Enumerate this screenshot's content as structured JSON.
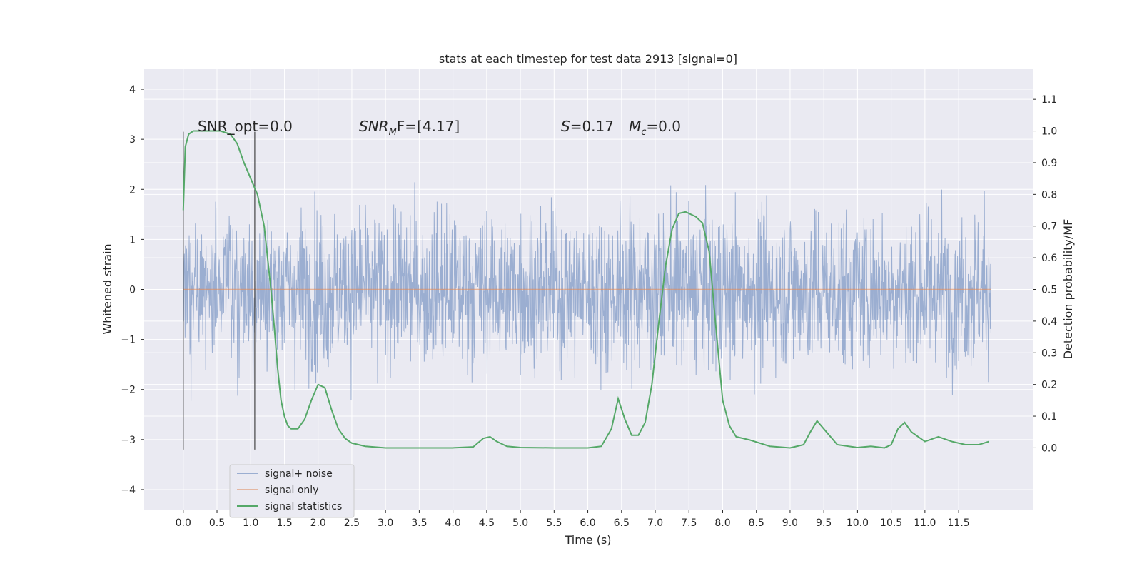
{
  "chart_data": {
    "type": "line",
    "title": "stats at each timestep for test data 2913 [signal=0]",
    "xlabel": "Time (s)",
    "ylabel_left": "Whitened strain",
    "ylabel_right": "Detection probability/MF",
    "xlim": [
      -0.58,
      12.6
    ],
    "ylim_left": [
      -4.4,
      4.4
    ],
    "ylim_right": [
      -0.195,
      1.195
    ],
    "x_ticks": [
      "0.0",
      "0.5",
      "1.0",
      "1.5",
      "2.0",
      "2.5",
      "3.0",
      "3.5",
      "4.0",
      "4.5",
      "5.0",
      "5.5",
      "6.0",
      "6.5",
      "7.0",
      "7.5",
      "8.0",
      "8.5",
      "9.0",
      "9.5",
      "10.0",
      "10.5",
      "11.0",
      "11.5"
    ],
    "y_ticks_left": [
      "−4",
      "−3",
      "−2",
      "−1",
      "0",
      "1",
      "2",
      "3",
      "4"
    ],
    "y_ticks_right": [
      "0.0",
      "0.1",
      "0.2",
      "0.3",
      "0.4",
      "0.5",
      "0.6",
      "0.7",
      "0.8",
      "0.9",
      "1.0",
      "1.1"
    ],
    "grid": true,
    "legend_position": "lower-left",
    "annotations": {
      "snr_opt": "SNR_opt=0.0",
      "snr_mf_prefix": "SNR",
      "snr_mf_sub": "M",
      "snr_mf_suffix": "F=[4.17]",
      "s_var": "S",
      "s_val": "=0.17",
      "mc_var": "M",
      "mc_sub": "c",
      "mc_val": "=0.0"
    },
    "vertical_lines_x": [
      0.0,
      1.06
    ],
    "series": [
      {
        "name": "signal+ noise",
        "color": "#4c72b0",
        "description_range": [
          -4.0,
          4.0
        ],
        "x_start": 0.0,
        "x_end": 11.98
      },
      {
        "name": "signal only",
        "color": "#dd8452",
        "x": [
          0.0,
          11.98
        ],
        "y": [
          0.0,
          0.0
        ]
      },
      {
        "name": "signal statistics",
        "color": "#55a868",
        "axis": "right",
        "x": [
          0.0,
          0.03,
          0.08,
          0.15,
          0.25,
          0.4,
          0.55,
          0.7,
          0.8,
          0.9,
          1.0,
          1.1,
          1.2,
          1.3,
          1.35,
          1.4,
          1.45,
          1.5,
          1.55,
          1.6,
          1.7,
          1.8,
          1.9,
          2.0,
          2.1,
          2.2,
          2.3,
          2.4,
          2.5,
          2.7,
          3.0,
          3.5,
          4.0,
          4.3,
          4.45,
          4.55,
          4.65,
          4.8,
          5.0,
          5.5,
          6.0,
          6.2,
          6.35,
          6.45,
          6.55,
          6.65,
          6.75,
          6.85,
          6.95,
          7.05,
          7.15,
          7.25,
          7.35,
          7.45,
          7.6,
          7.7,
          7.8,
          7.9,
          8.0,
          8.1,
          8.2,
          8.4,
          8.7,
          9.0,
          9.2,
          9.3,
          9.4,
          9.5,
          9.7,
          10.0,
          10.2,
          10.4,
          10.5,
          10.6,
          10.7,
          10.8,
          11.0,
          11.2,
          11.4,
          11.6,
          11.8,
          11.95
        ],
        "y": [
          0.75,
          0.95,
          0.99,
          1.0,
          1.0,
          1.0,
          1.0,
          0.99,
          0.96,
          0.9,
          0.85,
          0.8,
          0.7,
          0.5,
          0.38,
          0.25,
          0.15,
          0.1,
          0.07,
          0.06,
          0.06,
          0.09,
          0.15,
          0.2,
          0.19,
          0.12,
          0.06,
          0.03,
          0.015,
          0.005,
          0.0,
          0.0,
          0.0,
          0.003,
          0.03,
          0.035,
          0.02,
          0.005,
          0.001,
          0.0,
          0.0,
          0.005,
          0.06,
          0.155,
          0.09,
          0.04,
          0.04,
          0.08,
          0.2,
          0.39,
          0.57,
          0.69,
          0.74,
          0.745,
          0.73,
          0.71,
          0.62,
          0.38,
          0.15,
          0.07,
          0.035,
          0.025,
          0.005,
          0.0,
          0.01,
          0.05,
          0.085,
          0.06,
          0.01,
          0.001,
          0.005,
          0.0,
          0.01,
          0.06,
          0.08,
          0.05,
          0.02,
          0.035,
          0.02,
          0.01,
          0.01,
          0.02
        ]
      }
    ]
  }
}
